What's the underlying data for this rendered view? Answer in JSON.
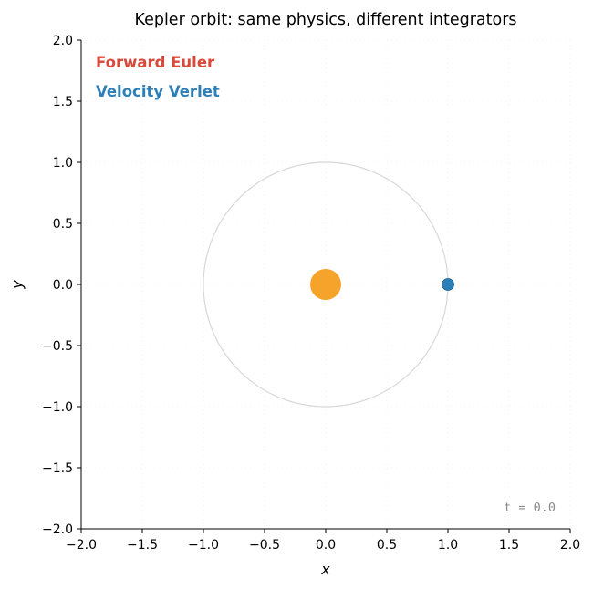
{
  "chart_data": {
    "type": "scatter",
    "title": "Kepler orbit: same physics, different integrators",
    "xlabel": "x",
    "ylabel": "y",
    "xlim": [
      -2.0,
      2.0
    ],
    "ylim": [
      -2.0,
      2.0
    ],
    "xticks": [
      "−2.0",
      "−1.5",
      "−1.0",
      "−0.5",
      "0.0",
      "0.5",
      "1.0",
      "1.5",
      "2.0"
    ],
    "yticks": [
      "2.0",
      "1.5",
      "1.0",
      "0.5",
      "0.0",
      "−0.5",
      "−1.0",
      "−1.5",
      "−2.0"
    ],
    "xtick_values": [
      -2.0,
      -1.5,
      -1.0,
      -0.5,
      0.0,
      0.5,
      1.0,
      1.5,
      2.0
    ],
    "ytick_values": [
      2.0,
      1.5,
      1.0,
      0.5,
      0.0,
      -0.5,
      -1.0,
      -1.5,
      -2.0
    ],
    "grid": true,
    "legend_placement": "top-left",
    "legend": [
      {
        "label": "Forward Euler",
        "color": "#d9493a"
      },
      {
        "label": "Velocity Verlet",
        "color": "#2d7fb8"
      }
    ],
    "reference_orbit": {
      "center": [
        0.0,
        0.0
      ],
      "radius": 1.0,
      "color": "#d8d8d8"
    },
    "sun": {
      "x": 0.0,
      "y": 0.0,
      "color": "#f5a32a"
    },
    "points": [
      {
        "x": 1.0,
        "y": 0.0,
        "color": "#2d7fb8"
      }
    ],
    "time_label": "t = 0.0",
    "time_label_placement": "bottom-right"
  }
}
